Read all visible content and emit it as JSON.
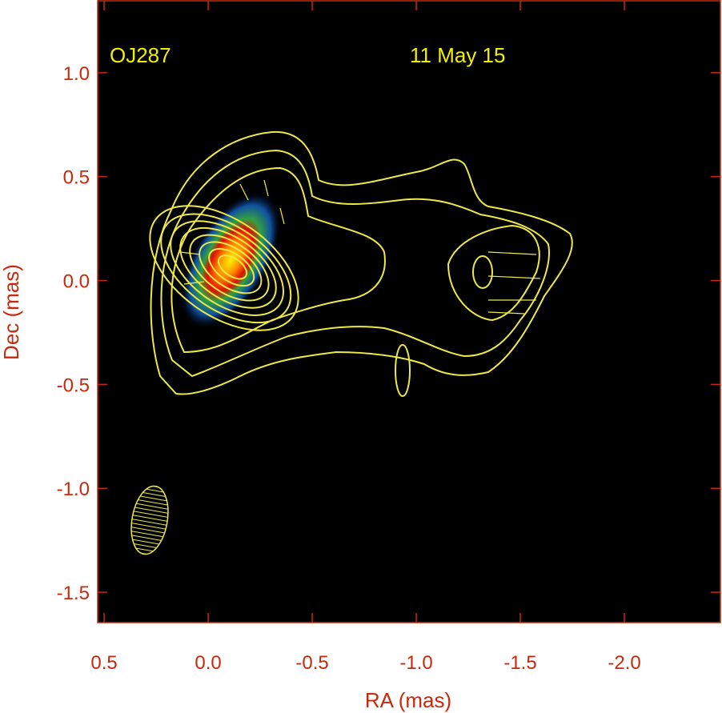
{
  "chart_data": {
    "type": "image",
    "annotations": [
      "OJ287",
      "11 May 15"
    ],
    "xlabel": "RA (mas)",
    "ylabel": "Dec (mas)",
    "xlim": [
      0.531,
      -2.4615
    ],
    "ylim": [
      -1.646,
      1.346
    ],
    "xticks": [
      0.5,
      {
        "value": 0,
        "label": "0.0"
      },
      -0.5,
      {
        "value": -1,
        "label": "-1.0"
      },
      -1.5,
      {
        "value": -2,
        "label": "-2.0"
      }
    ],
    "yticks": [
      {
        "value": 1,
        "label": "1.0"
      },
      0.5,
      {
        "value": 0,
        "label": "0.0"
      },
      -0.5,
      {
        "value": -1,
        "label": "-1.0"
      },
      -1.5
    ],
    "frame_color": "#c8290c"
  }
}
